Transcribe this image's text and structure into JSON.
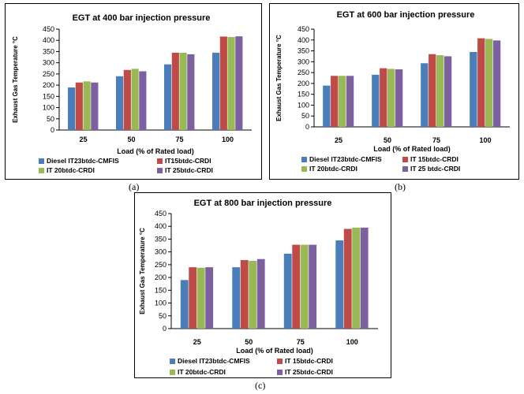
{
  "captions": [
    "(a)",
    "(b)",
    "(c)"
  ],
  "colors": {
    "s1": "#4a7ebb",
    "s2": "#be4b48",
    "s3": "#98b954",
    "s4": "#7d60a0"
  },
  "chart_data": [
    {
      "type": "bar",
      "title": "EGT at 400 bar injection pressure",
      "xlabel": "Load (% of Rated load)",
      "ylabel": "Exhaust Gas Temperature  °C",
      "categories": [
        "25",
        "50",
        "75",
        "100"
      ],
      "ylim": [
        0,
        450
      ],
      "yticks": [
        0,
        50,
        100,
        150,
        200,
        250,
        300,
        350,
        400,
        450
      ],
      "grid": false,
      "legend_position": "bottom",
      "series": [
        {
          "name": "Diesel IT23btdc-CMFIS",
          "values": [
            190,
            240,
            293,
            345
          ]
        },
        {
          "name": "IT15btdc-CRDI",
          "values": [
            212,
            268,
            345,
            417
          ]
        },
        {
          "name": "IT 20btdc-CRDI",
          "values": [
            217,
            273,
            345,
            415
          ]
        },
        {
          "name": "IT 25btdc-CRDI",
          "values": [
            212,
            262,
            338,
            418
          ]
        }
      ]
    },
    {
      "type": "bar",
      "title": "EGT at 600 bar injection pressure",
      "xlabel": "Load (% of Rated load)",
      "ylabel": "Exhaust  Gas Temperature  °C",
      "categories": [
        "25",
        "50",
        "75",
        "100"
      ],
      "ylim": [
        0,
        450
      ],
      "yticks": [
        0,
        50,
        100,
        150,
        200,
        250,
        300,
        350,
        400,
        450
      ],
      "grid": false,
      "legend_position": "bottom",
      "series": [
        {
          "name": "Diesel IT23btdc-CMFIS",
          "values": [
            190,
            240,
            293,
            345
          ]
        },
        {
          "name": "IT 15btdc-CRDI",
          "values": [
            235,
            270,
            335,
            408
          ]
        },
        {
          "name": "IT 20btdc-CRDI",
          "values": [
            235,
            267,
            330,
            405
          ]
        },
        {
          "name": "IT 25 btdc-CRDI",
          "values": [
            235,
            265,
            325,
            398
          ]
        }
      ]
    },
    {
      "type": "bar",
      "title": "EGT at 800 bar injection pressure",
      "xlabel": "Load (% of Rated load)",
      "ylabel": "Exhaust Gas Temperature  °C",
      "categories": [
        "25",
        "50",
        "75",
        "100"
      ],
      "ylim": [
        0,
        450
      ],
      "yticks": [
        0,
        50,
        100,
        150,
        200,
        250,
        300,
        350,
        400,
        450
      ],
      "grid": false,
      "legend_position": "bottom",
      "series": [
        {
          "name": "Diesel IT23btdc-CMFIS",
          "values": [
            190,
            240,
            293,
            345
          ]
        },
        {
          "name": "IT 15btdc-CRDI",
          "values": [
            240,
            268,
            328,
            390
          ]
        },
        {
          "name": "IT 20btdc-CRDI",
          "values": [
            238,
            265,
            328,
            395
          ]
        },
        {
          "name": "IT 25btdc-CRDI",
          "values": [
            240,
            272,
            328,
            395
          ]
        }
      ]
    }
  ]
}
